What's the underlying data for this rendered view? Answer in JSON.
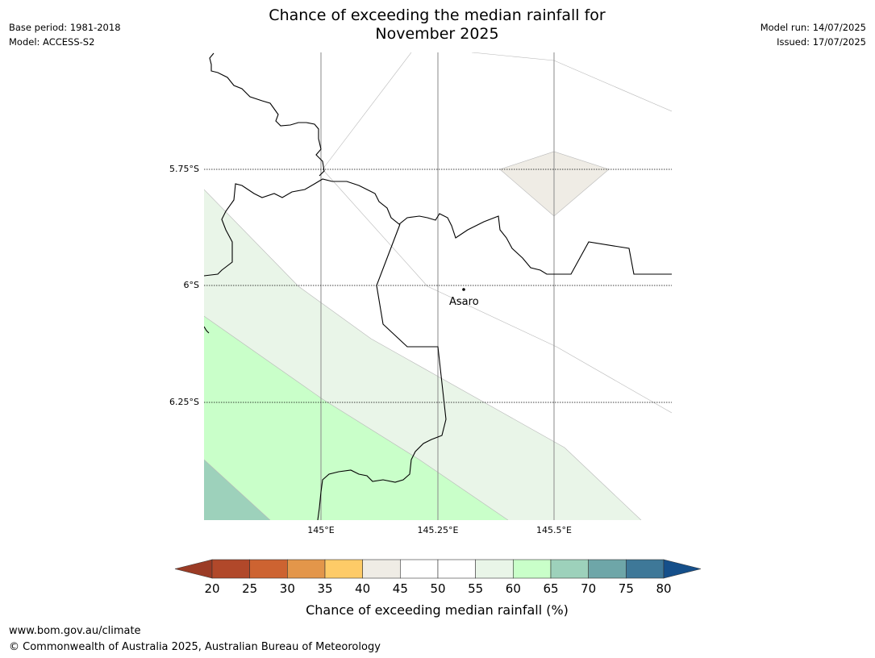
{
  "title_line1": "Chance of exceeding the median rainfall for",
  "title_line2": "November 2025",
  "meta_left": {
    "base_period": "Base period: 1981-2018",
    "model": "Model: ACCESS-S2"
  },
  "meta_right": {
    "model_run": "Model run: 14/07/2025",
    "issued": "Issued: 17/07/2025"
  },
  "map": {
    "lat_labels": [
      "5.75°S",
      "6°S",
      "6.25°S"
    ],
    "lon_labels": [
      "145°E",
      "145.25°E",
      "145.5°E"
    ],
    "place_name": "Asaro"
  },
  "colorbar": {
    "ticks": [
      "20",
      "25",
      "30",
      "35",
      "40",
      "45",
      "50",
      "55",
      "60",
      "65",
      "70",
      "75",
      "80"
    ],
    "colors": [
      "#b1482a",
      "#cd6331",
      "#e3964a",
      "#fecb67",
      "#efece5",
      "#ffffff",
      "#ffffff",
      "#e9f5e8",
      "#c9ffc9",
      "#9dd1bb",
      "#6ea6a8",
      "#3e7898"
    ],
    "under_color": "#9b3b25",
    "over_color": "#154f8a",
    "label": "Chance of exceeding median rainfall (%)"
  },
  "footer": {
    "url": "www.bom.gov.au/climate",
    "copyright": "© Commonwealth of Australia 2025, Australian Bureau of Meteorology"
  }
}
